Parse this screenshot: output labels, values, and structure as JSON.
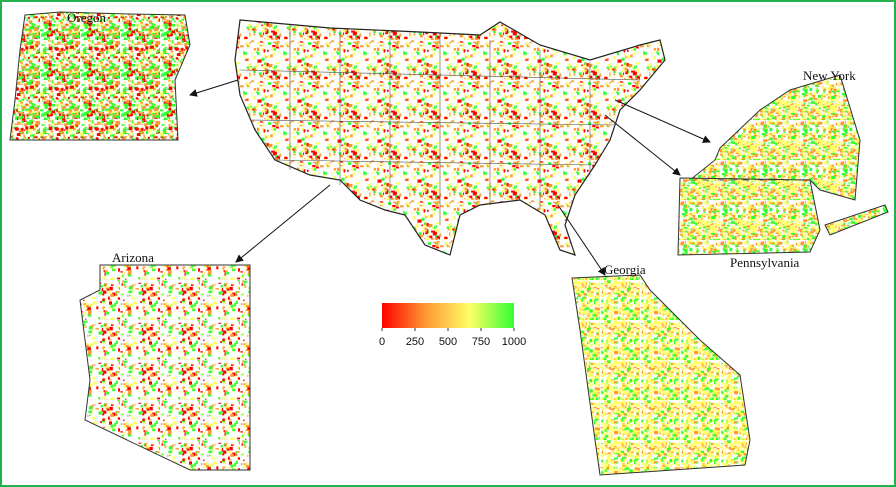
{
  "insets": [
    {
      "label": "Oregon"
    },
    {
      "label": "Arizona"
    },
    {
      "label": "New York"
    },
    {
      "label": "Pennsylvania"
    },
    {
      "label": "Georgia"
    }
  ],
  "colorbar": {
    "range": [
      0,
      1000
    ],
    "ticks": [
      0,
      250,
      500,
      750,
      1000
    ],
    "colors": [
      "#ff0000",
      "#ff9933",
      "#ffff66",
      "#33ff33"
    ]
  }
}
